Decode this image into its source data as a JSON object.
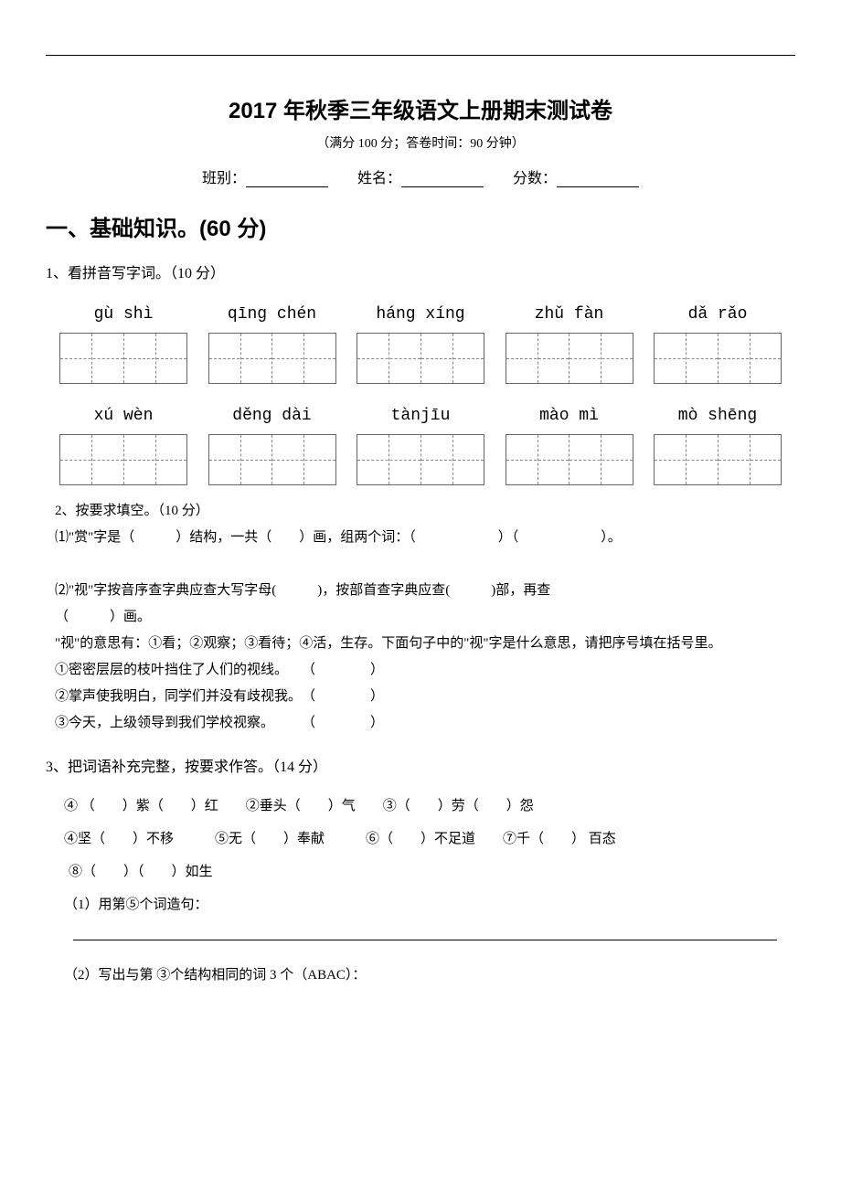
{
  "title": "2017 年秋季三年级语文上册期末测试卷",
  "subtitle": "（满分 100 分；答卷时间：90 分钟）",
  "fields": {
    "class_label": "班别：",
    "name_label": "姓名：",
    "score_label": "分数："
  },
  "section1": {
    "heading": "一、基础知识。(60 分)",
    "q1": {
      "label": "1、看拼音写字词。（10 分）",
      "row1": [
        {
          "pinyin": "gù   shì",
          "cells": 2
        },
        {
          "pinyin": "qīng chén",
          "cells": 2
        },
        {
          "pinyin": "háng xíng",
          "cells": 2
        },
        {
          "pinyin": "zhǔ   fàn",
          "cells": 2
        },
        {
          "pinyin": "dǎ   rǎo",
          "cells": 2
        }
      ],
      "row2": [
        {
          "pinyin": "xú   wèn",
          "cells": 2
        },
        {
          "pinyin": "děng dài",
          "cells": 2
        },
        {
          "pinyin": "tànjīu",
          "cells": 2
        },
        {
          "pinyin": "mào   mì",
          "cells": 2
        },
        {
          "pinyin": "mò shēng",
          "cells": 2
        }
      ]
    },
    "q2": {
      "label": "2、按要求填空。（10 分）",
      "part1": "⑴\"赏\"字是（　　　）结构，一共（　　）画，组两个词：（　　　　　　）（　　　　　　）。",
      "part2_l1": "⑵\"视\"字按音序查字典应查大写字母(　　　)，按部首查字典应查(　　　)部，再查",
      "part2_l2": "（　　　）画。",
      "part2_l3": "\"视\"的意思有：①看；②观察；③看待；④活，生存。下面句子中的\"视\"字是什么意思，请把序号填在括号里。",
      "s1": "①密密层层的枝叶挡住了人们的视线。　　（　　　　）",
      "s2": "②掌声使我明白，同学们并没有歧视我。　（　　　　）",
      "s3": "③今天，上级领导到我们学校视察。　　　（　　　　）"
    },
    "q3": {
      "label": "3、把词语补充完整，按要求作答。（14 分）",
      "line1": "④ （　　）紫（　　）红　　②垂头（　　）气　　③（　　）劳（　　）怨",
      "line2": "④坚（　　）不移　　　⑤无（　　）奉献　　　⑥（　　）不足道　　⑦千（　　） 百态",
      "line3": "⑧（　　）（　　）如生",
      "sub1": "（1）用第⑤个词造句：",
      "sub2": "（2）写出与第 ③个结构相同的词 3 个（ABAC）："
    }
  }
}
